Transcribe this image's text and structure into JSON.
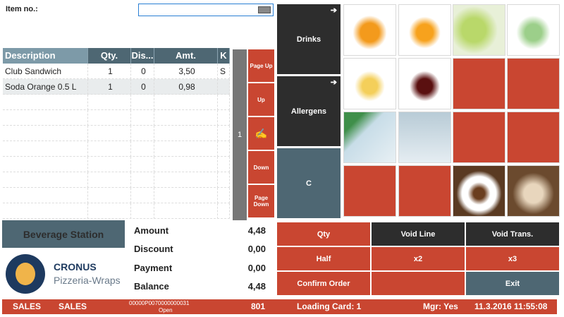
{
  "item_no": {
    "label": "Item no.:",
    "value": ""
  },
  "table": {
    "headers": [
      "Description",
      "Qty.",
      "Dis...",
      "Amt.",
      "K"
    ],
    "rows": [
      [
        "Club Sandwich",
        "1",
        "0",
        "3,50",
        "S"
      ],
      [
        "Soda Orange 0.5 L",
        "1",
        "0",
        "0,98",
        ""
      ]
    ]
  },
  "scroll": {
    "page": "1"
  },
  "nav": {
    "page_up": "Page Up",
    "up": "Up",
    "down": "Down",
    "page_down": "Page Down"
  },
  "categories": [
    {
      "label": "Drinks"
    },
    {
      "label": "Allergens"
    },
    {
      "label": "C"
    }
  ],
  "tiles": [
    "orange-juice-bottle",
    "orange-soda-bottle",
    "lime-drink",
    "mineral-water-glass",
    "apple-juice-bottle",
    "cola-bottle",
    "",
    "",
    "sparkling-water-glass",
    "water-glass",
    "",
    "",
    "",
    "",
    "coffee-cup",
    "cappuccino"
  ],
  "station": "Beverage Station",
  "logo": {
    "name": "CRONUS",
    "sub": "Pizzeria-Wraps"
  },
  "totals": [
    {
      "label": "Amount",
      "value": "4,48"
    },
    {
      "label": "Discount",
      "value": "0,00"
    },
    {
      "label": "Payment",
      "value": "0,00"
    },
    {
      "label": "Balance",
      "value": "4,48"
    }
  ],
  "actions": [
    "Qty",
    "Void Line",
    "Void Trans.",
    "Half",
    "x2",
    "x3",
    "Confirm Order",
    "",
    "Exit"
  ],
  "status": {
    "a": "SALES",
    "b": "SALES",
    "trans": "00000P0070000000031",
    "state": "Open",
    "terminal": "801",
    "loading": "Loading Card: 1",
    "mgr": "Mgr: Yes",
    "datetime": "11.3.2016 11:55:08"
  },
  "colors": {
    "accent": "#c94631",
    "dark": "#2d2d2d",
    "slate": "#4e6773"
  }
}
